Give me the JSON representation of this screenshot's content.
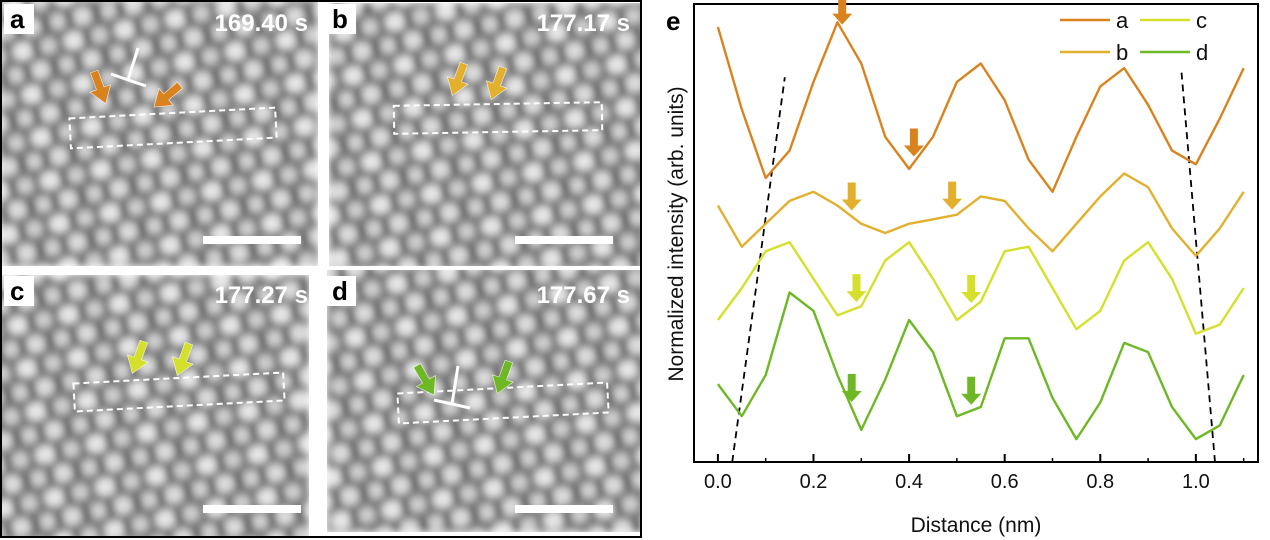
{
  "figure": {
    "micrographs": [
      {
        "id": "a",
        "label": "a",
        "timestamp": "169.40 s",
        "arrow_color": "#D9831F",
        "dislocation": true
      },
      {
        "id": "b",
        "label": "b",
        "timestamp": "177.17 s",
        "arrow_color": "#E3B02E",
        "dislocation": false
      },
      {
        "id": "c",
        "label": "c",
        "timestamp": "177.27 s",
        "arrow_color": "#D4E02C",
        "dislocation": false
      },
      {
        "id": "d",
        "label": "d",
        "timestamp": "177.67 s",
        "arrow_color": "#6FB825",
        "dislocation": true
      }
    ],
    "colors": {
      "a": "#D9831F",
      "b": "#E3B02E",
      "c": "#D4E02C",
      "d": "#6FB825"
    }
  },
  "chart_data": {
    "type": "line",
    "panel_label": "e",
    "title": "",
    "xlabel": "Distance (nm)",
    "ylabel": "Normalized intensity (arb. units)",
    "xlim": [
      -0.05,
      1.13
    ],
    "ylim": [
      0,
      1
    ],
    "xticks": [
      0.0,
      0.2,
      0.4,
      0.6,
      0.8,
      1.0
    ],
    "xtick_labels": [
      "0.0",
      "0.2",
      "0.4",
      "0.6",
      "0.8",
      "1.0"
    ],
    "series": [
      {
        "name": "a",
        "color": "#D9831F",
        "x": [
          0.0,
          0.05,
          0.1,
          0.15,
          0.2,
          0.25,
          0.3,
          0.35,
          0.4,
          0.45,
          0.5,
          0.55,
          0.6,
          0.65,
          0.7,
          0.75,
          0.8,
          0.85,
          0.9,
          0.95,
          1.0,
          1.05,
          1.1
        ],
        "y": [
          0.95,
          0.77,
          0.62,
          0.68,
          0.83,
          0.96,
          0.87,
          0.71,
          0.64,
          0.71,
          0.83,
          0.87,
          0.79,
          0.66,
          0.59,
          0.71,
          0.82,
          0.86,
          0.78,
          0.68,
          0.65,
          0.75,
          0.86
        ]
      },
      {
        "name": "b",
        "color": "#E3B02E",
        "x": [
          0.0,
          0.05,
          0.1,
          0.15,
          0.2,
          0.25,
          0.3,
          0.35,
          0.4,
          0.45,
          0.5,
          0.55,
          0.6,
          0.65,
          0.7,
          0.75,
          0.8,
          0.85,
          0.9,
          0.95,
          1.0,
          1.05,
          1.1
        ],
        "y": [
          0.56,
          0.47,
          0.52,
          0.57,
          0.59,
          0.56,
          0.52,
          0.5,
          0.52,
          0.53,
          0.54,
          0.58,
          0.57,
          0.51,
          0.46,
          0.52,
          0.58,
          0.63,
          0.6,
          0.51,
          0.45,
          0.51,
          0.59
        ]
      },
      {
        "name": "c",
        "color": "#D4E02C",
        "x": [
          0.0,
          0.05,
          0.1,
          0.15,
          0.2,
          0.25,
          0.3,
          0.35,
          0.4,
          0.45,
          0.5,
          0.55,
          0.6,
          0.65,
          0.7,
          0.75,
          0.8,
          0.85,
          0.9,
          0.95,
          1.0,
          1.05,
          1.1
        ],
        "y": [
          0.31,
          0.38,
          0.46,
          0.48,
          0.4,
          0.32,
          0.34,
          0.44,
          0.48,
          0.4,
          0.31,
          0.35,
          0.46,
          0.47,
          0.38,
          0.29,
          0.33,
          0.44,
          0.48,
          0.4,
          0.28,
          0.3,
          0.38
        ]
      },
      {
        "name": "d",
        "color": "#6FB825",
        "x": [
          0.0,
          0.05,
          0.1,
          0.15,
          0.2,
          0.25,
          0.3,
          0.35,
          0.4,
          0.45,
          0.5,
          0.55,
          0.6,
          0.65,
          0.7,
          0.75,
          0.8,
          0.85,
          0.9,
          0.95,
          1.0,
          1.05,
          1.1
        ],
        "y": [
          0.17,
          0.1,
          0.19,
          0.37,
          0.33,
          0.19,
          0.07,
          0.18,
          0.31,
          0.24,
          0.1,
          0.12,
          0.27,
          0.27,
          0.14,
          0.05,
          0.13,
          0.26,
          0.24,
          0.12,
          0.05,
          0.08,
          0.19
        ]
      }
    ],
    "arrows": [
      {
        "series": "a",
        "x": [
          0.26,
          0.41
        ]
      },
      {
        "series": "b",
        "x": [
          0.28,
          0.49
        ]
      },
      {
        "series": "c",
        "x": [
          0.29,
          0.53
        ]
      },
      {
        "series": "d",
        "x": [
          0.28,
          0.53
        ]
      }
    ],
    "guide_lines": [
      {
        "from": [
          0.03,
          0.0
        ],
        "to": [
          0.14,
          0.84
        ],
        "style": "dashed"
      },
      {
        "from": [
          1.04,
          0.0
        ],
        "to": [
          0.97,
          0.85
        ],
        "style": "dashed"
      }
    ],
    "legend": {
      "entries": [
        "a",
        "c",
        "b",
        "d"
      ],
      "placement": "top-right"
    }
  }
}
